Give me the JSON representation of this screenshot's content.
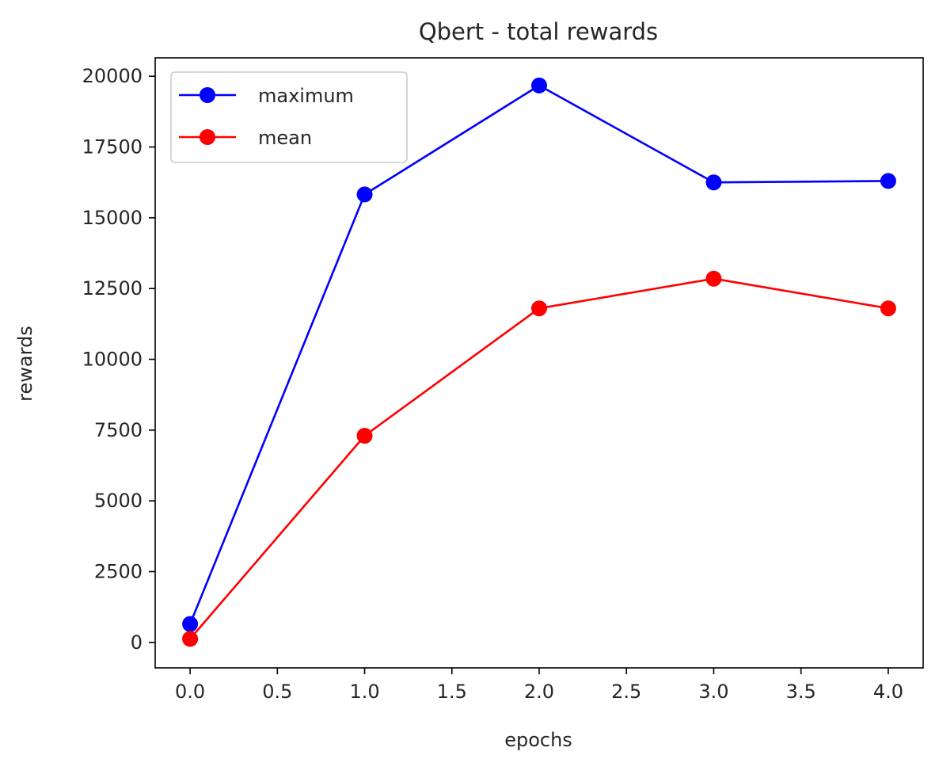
{
  "chart_data": {
    "type": "line",
    "title": "Qbert - total rewards",
    "xlabel": "epochs",
    "ylabel": "rewards",
    "x": [
      0.0,
      1.0,
      2.0,
      3.0,
      4.0
    ],
    "xlim": [
      -0.2,
      4.2
    ],
    "ylim": [
      -900,
      20650
    ],
    "xticks": [
      0.0,
      0.5,
      1.0,
      1.5,
      2.0,
      2.5,
      3.0,
      3.5,
      4.0
    ],
    "xtick_labels": [
      "0.0",
      "0.5",
      "1.0",
      "1.5",
      "2.0",
      "2.5",
      "3.0",
      "3.5",
      "4.0"
    ],
    "yticks": [
      0,
      2500,
      5000,
      7500,
      10000,
      12500,
      15000,
      17500,
      20000
    ],
    "ytick_labels": [
      "0",
      "2500",
      "5000",
      "7500",
      "10000",
      "12500",
      "15000",
      "17500",
      "20000"
    ],
    "grid": false,
    "legend_position": "top-left",
    "series": [
      {
        "name": "maximum",
        "color": "#0000ff",
        "marker": "circle",
        "values": [
          650,
          15825,
          19675,
          16250,
          16300
        ]
      },
      {
        "name": "mean",
        "color": "#ff0000",
        "marker": "circle",
        "values": [
          125,
          7300,
          11800,
          12850,
          11800
        ]
      }
    ]
  }
}
